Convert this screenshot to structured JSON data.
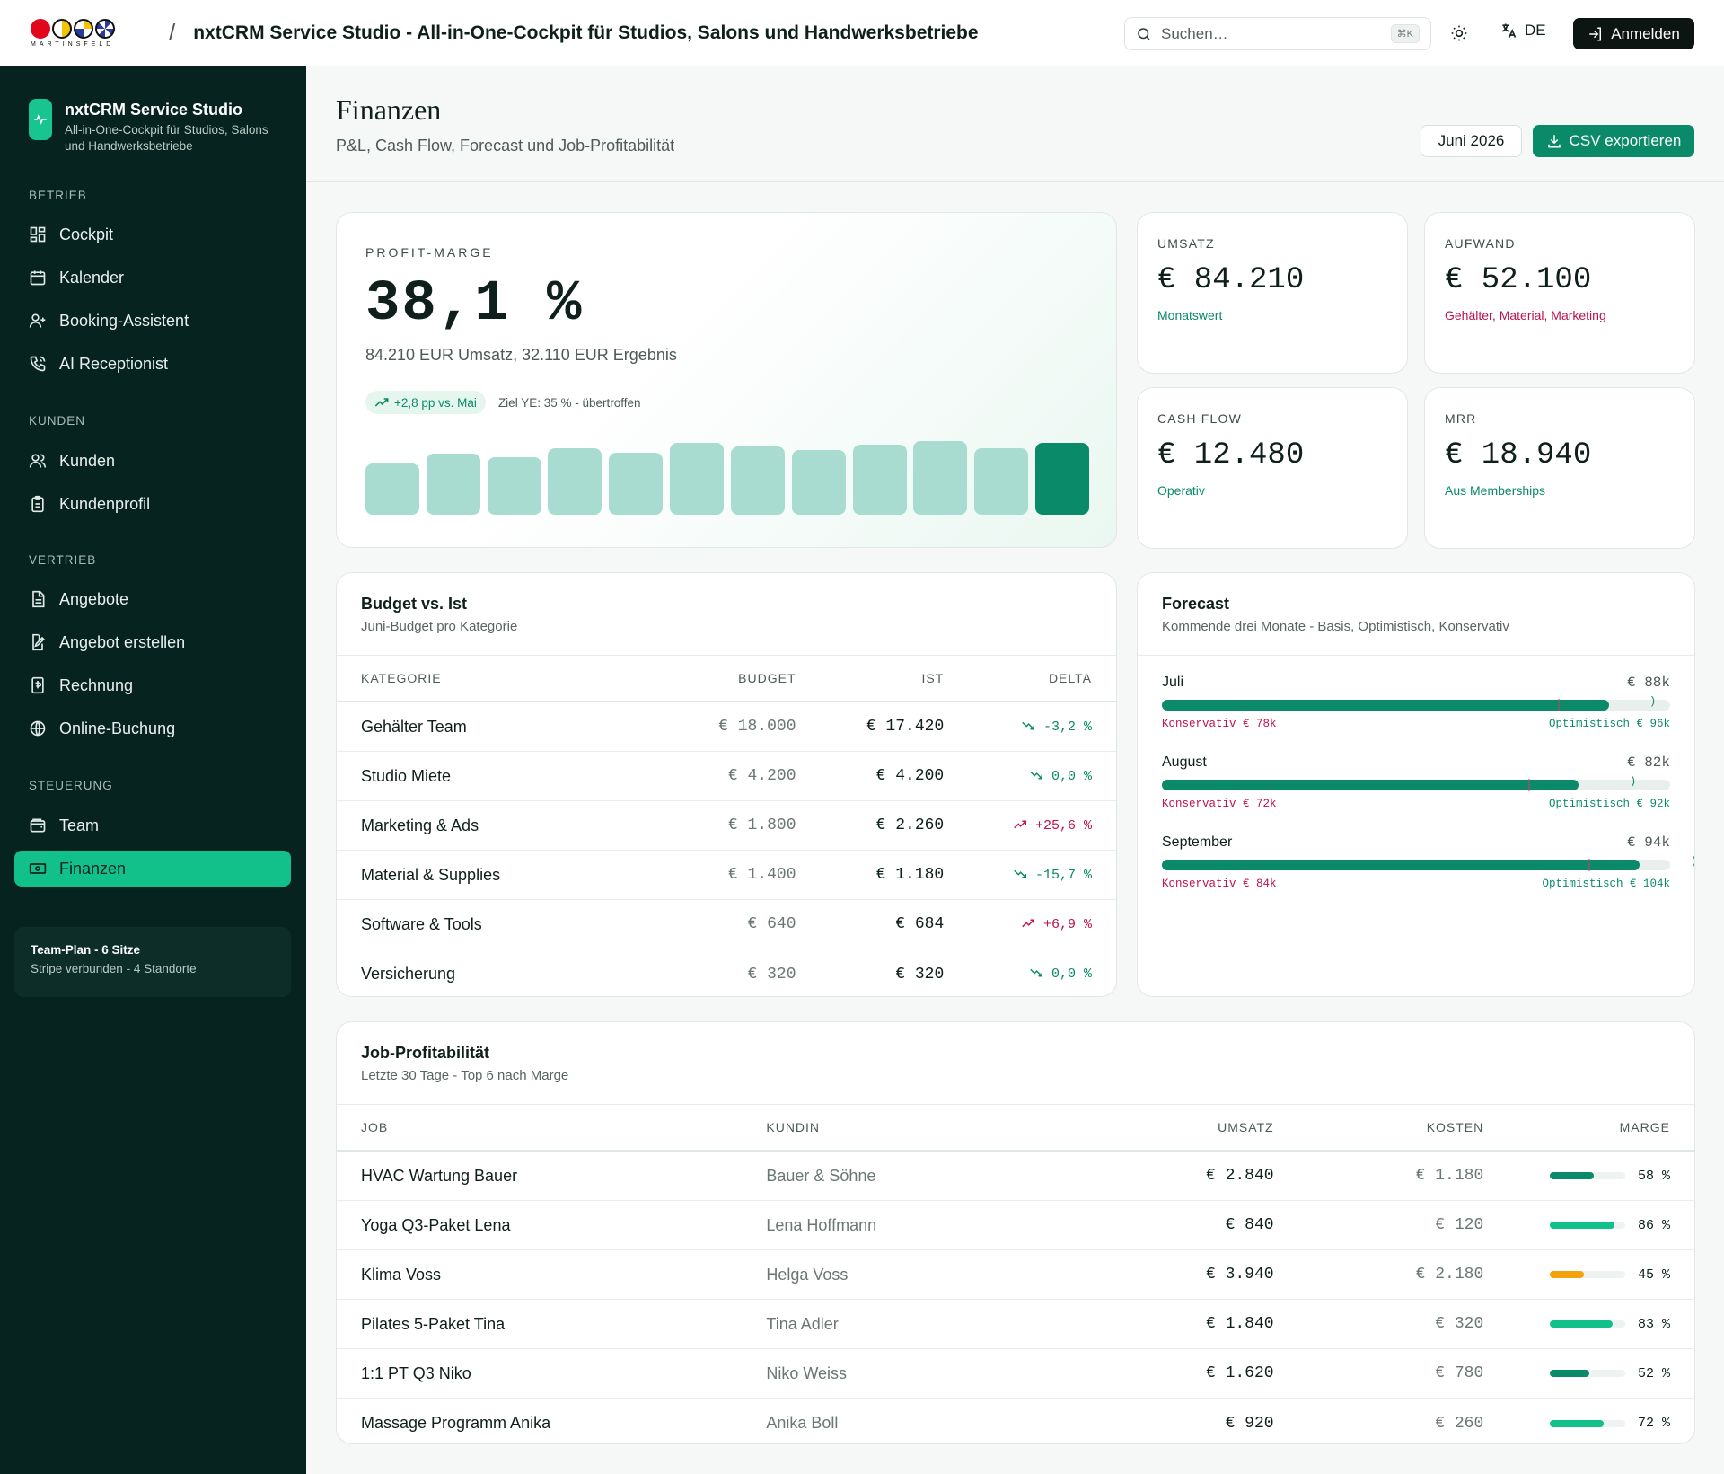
{
  "topbar": {
    "logo_text": "MARTINSFELD",
    "separator": "/",
    "title": "nxtCRM Service Studio - All-in-One-Cockpit für Studios, Salons und Handwerksbetriebe",
    "search_placeholder": "Suchen…",
    "search_shortcut": "⌘K",
    "lang": "DE",
    "login": "Anmelden"
  },
  "sidebar": {
    "brand_name": "nxtCRM Service Studio",
    "brand_sub": "All-in-One-Cockpit für Studios, Salons und Handwerksbetriebe",
    "sections": {
      "betrieb": "BETRIEB",
      "kunden": "KUNDEN",
      "vertrieb": "VERTRIEB",
      "steuerung": "STEUERUNG"
    },
    "items": {
      "cockpit": "Cockpit",
      "kalender": "Kalender",
      "booking": "Booking-Assistent",
      "receptionist": "AI Receptionist",
      "kunden": "Kunden",
      "kundenprofil": "Kundenprofil",
      "angebote": "Angebote",
      "angebot_erstellen": "Angebot erstellen",
      "rechnung": "Rechnung",
      "online_buchung": "Online-Buchung",
      "team": "Team",
      "finanzen": "Finanzen"
    },
    "plan_title": "Team-Plan - 6 Sitze",
    "plan_sub": "Stripe verbunden - 4 Standorte"
  },
  "header": {
    "title": "Finanzen",
    "subtitle": "P&L, Cash Flow, Forecast und Job-Profitabilität",
    "month": "Juni 2026",
    "export": "CSV exportieren"
  },
  "profit": {
    "label": "PROFIT-MARGE",
    "value": "38,1 %",
    "sub": "84.210 EUR Umsatz, 32.110 EUR Ergebnis",
    "chip": "+2,8 pp vs. Mai",
    "goal": "Ziel YE: 35 % - übertroffen",
    "bars": [
      0.72,
      0.85,
      0.8,
      0.93,
      0.87,
      1.0,
      0.95,
      0.9,
      0.98,
      1.03,
      0.93,
      1.0
    ]
  },
  "kpis": {
    "umsatz": {
      "label": "UMSATZ",
      "value": "€ 84.210",
      "note": "Monatswert"
    },
    "aufwand": {
      "label": "AUFWAND",
      "value": "€ 52.100",
      "note": "Gehälter, Material, Marketing"
    },
    "cashflow": {
      "label": "CASH FLOW",
      "value": "€ 12.480",
      "note": "Operativ"
    },
    "mrr": {
      "label": "MRR",
      "value": "€ 18.940",
      "note": "Aus Memberships"
    }
  },
  "budget": {
    "title": "Budget vs. Ist",
    "subtitle": "Juni-Budget pro Kategorie",
    "headers": {
      "kategorie": "KATEGORIE",
      "budget": "BUDGET",
      "ist": "IST",
      "delta": "DELTA"
    },
    "rows": [
      {
        "kategorie": "Gehälter Team",
        "budget": "€ 18.000",
        "ist": "€ 17.420",
        "delta": "-3,2 %",
        "dir": "down"
      },
      {
        "kategorie": "Studio Miete",
        "budget": "€ 4.200",
        "ist": "€ 4.200",
        "delta": "0,0 %",
        "dir": "down"
      },
      {
        "kategorie": "Marketing & Ads",
        "budget": "€ 1.800",
        "ist": "€ 2.260",
        "delta": "+25,6 %",
        "dir": "up"
      },
      {
        "kategorie": "Material & Supplies",
        "budget": "€ 1.400",
        "ist": "€ 1.180",
        "delta": "-15,7 %",
        "dir": "down"
      },
      {
        "kategorie": "Software & Tools",
        "budget": "€ 640",
        "ist": "€ 684",
        "delta": "+6,9 %",
        "dir": "up"
      },
      {
        "kategorie": "Versicherung",
        "budget": "€ 320",
        "ist": "€ 320",
        "delta": "0,0 %",
        "dir": "down"
      }
    ]
  },
  "forecast": {
    "title": "Forecast",
    "subtitle": "Kommende drei Monate - Basis, Optimistisch, Konservativ",
    "rows": [
      {
        "month": "Juli",
        "base": "€ 88k",
        "cons": "Konservativ € 78k",
        "opt": "Optimistisch € 96k",
        "base_v": 88,
        "cons_v": 78,
        "opt_v": 96
      },
      {
        "month": "August",
        "base": "€ 82k",
        "cons": "Konservativ € 72k",
        "opt": "Optimistisch € 92k",
        "base_v": 82,
        "cons_v": 72,
        "opt_v": 92
      },
      {
        "month": "September",
        "base": "€ 94k",
        "cons": "Konservativ € 84k",
        "opt": "Optimistisch € 104k",
        "base_v": 94,
        "cons_v": 84,
        "opt_v": 104
      }
    ]
  },
  "jobs": {
    "title": "Job-Profitabilität",
    "subtitle": "Letzte 30 Tage - Top 6 nach Marge",
    "headers": {
      "job": "JOB",
      "kundin": "KUNDIN",
      "umsatz": "UMSATZ",
      "kosten": "KOSTEN",
      "marge": "MARGE"
    },
    "rows": [
      {
        "job": "HVAC Wartung Bauer",
        "kundin": "Bauer & Söhne",
        "umsatz": "€ 2.840",
        "kosten": "€ 1.180",
        "marge": "58 %",
        "marge_v": 58,
        "color": "#0b8a6a"
      },
      {
        "job": "Yoga Q3-Paket Lena",
        "kundin": "Lena Hoffmann",
        "umsatz": "€ 840",
        "kosten": "€ 120",
        "marge": "86 %",
        "marge_v": 86,
        "color": "#12c08a"
      },
      {
        "job": "Klima Voss",
        "kundin": "Helga Voss",
        "umsatz": "€ 3.940",
        "kosten": "€ 2.180",
        "marge": "45 %",
        "marge_v": 45,
        "color": "#f4a20c"
      },
      {
        "job": "Pilates 5-Paket Tina",
        "kundin": "Tina Adler",
        "umsatz": "€ 1.840",
        "kosten": "€ 320",
        "marge": "83 %",
        "marge_v": 83,
        "color": "#12c08a"
      },
      {
        "job": "1:1 PT Q3 Niko",
        "kundin": "Niko Weiss",
        "umsatz": "€ 1.620",
        "kosten": "€ 780",
        "marge": "52 %",
        "marge_v": 52,
        "color": "#0b8a6a"
      },
      {
        "job": "Massage Programm Anika",
        "kundin": "Anika Boll",
        "umsatz": "€ 920",
        "kosten": "€ 260",
        "marge": "72 %",
        "marge_v": 72,
        "color": "#12c08a"
      }
    ]
  },
  "colors": {
    "accent": "#0b8a6a",
    "accent_bright": "#12c08a",
    "sidebar_bg": "#06231f",
    "negative": "#c0124a"
  }
}
